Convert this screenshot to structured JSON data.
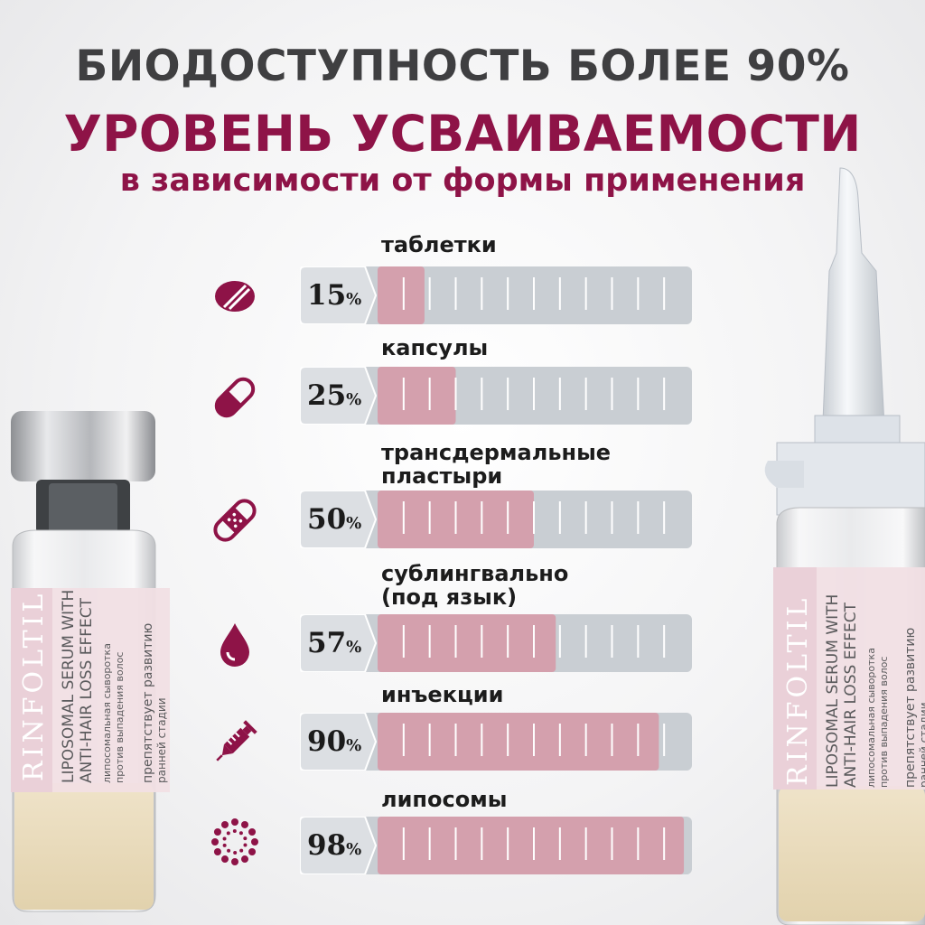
{
  "header": {
    "line1": "БИОДОСТУПНОСТЬ БОЛЕЕ 90%",
    "line2": "УРОВЕНЬ УСВАИВАЕМОСТИ",
    "line3": "в зависимости от формы применения"
  },
  "colors": {
    "accent": "#8e1347",
    "bar_fill": "#d4a0ad",
    "bar_track": "#c9ced3",
    "bar_start": "#dcdfe3",
    "text_dark": "#3f3f41"
  },
  "icons": [
    "pill-tablet-icon",
    "capsule-icon",
    "patch-icon",
    "drop-icon",
    "syringe-icon",
    "liposome-icon"
  ],
  "vial": {
    "brand": "RINFOLTIL",
    "product_en_1": "LIPOSOMAL SERUM WITH",
    "product_en_2": "ANTI-HAIR LOSS EFFECT",
    "product_ru_1": "липосомальная сыворотка",
    "product_ru_2": "против выпадения волос",
    "claim_1": "препятствует развитию",
    "claim_2": "ранней стадии"
  },
  "chart_data": {
    "type": "bar",
    "categories": [
      "таблетки",
      "капсулы",
      "трансдермальные пластыри",
      "сублингвально (под язык)",
      "инъекции",
      "липосомы"
    ],
    "values": [
      15,
      25,
      50,
      57,
      90,
      98
    ],
    "value_labels": [
      "15",
      "25",
      "50",
      "57",
      "90",
      "98"
    ],
    "unit": "%",
    "ylim": [
      0,
      100
    ],
    "title": "УРОВЕНЬ УСВАИВАЕМОСТИ",
    "subtitle": "в зависимости от формы применения"
  }
}
